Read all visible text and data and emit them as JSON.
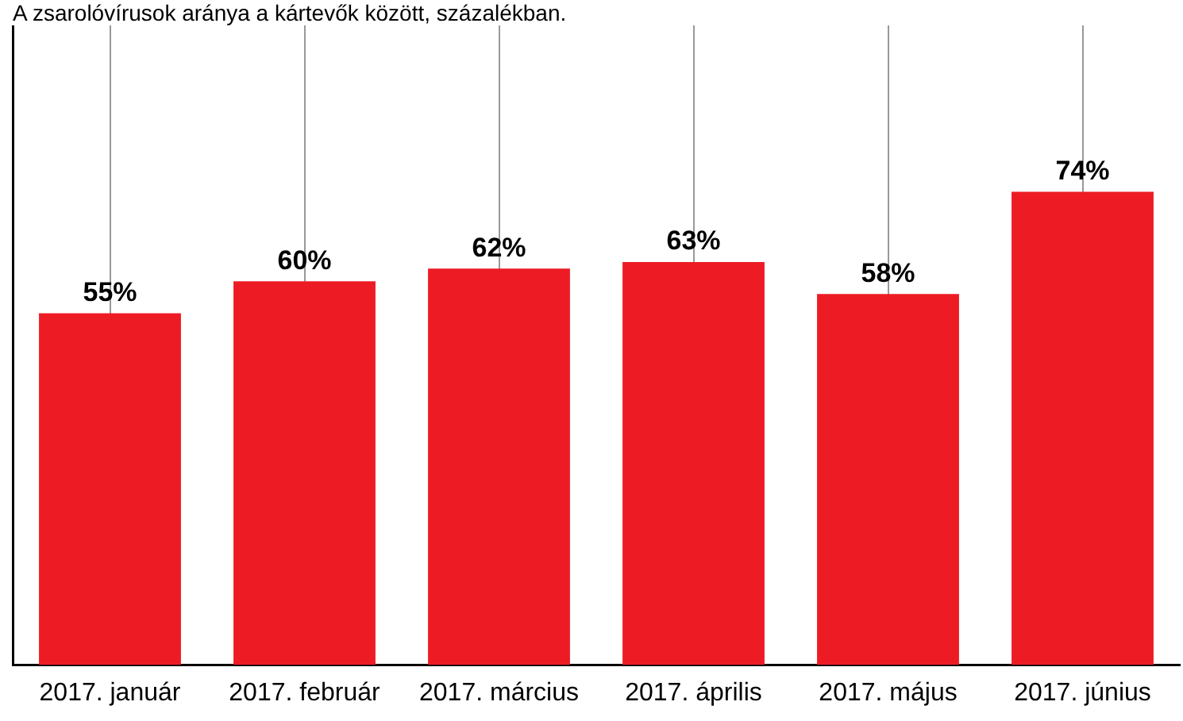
{
  "chart_data": {
    "type": "bar",
    "title": "A zsarolóvírusok aránya a kártevők között, százalékban.",
    "categories": [
      "2017. január",
      "2017. február",
      "2017. március",
      "2017. április",
      "2017. május",
      "2017. június"
    ],
    "values": [
      55,
      60,
      62,
      63,
      58,
      74
    ],
    "value_labels": [
      "55%",
      "60%",
      "62%",
      "63%",
      "58%",
      "74%"
    ],
    "color": "#ed1c24",
    "ylim": [
      0,
      100
    ],
    "tick_labels": "x",
    "grid": "x",
    "legend": false
  }
}
